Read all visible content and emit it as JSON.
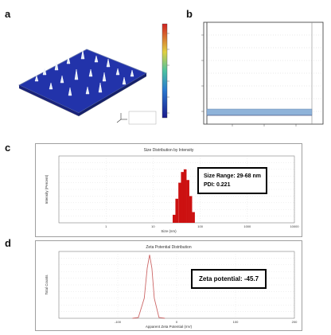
{
  "panels": {
    "a": {
      "letter": "a"
    },
    "b": {
      "letter": "b"
    },
    "c": {
      "letter": "c",
      "title": "Size Distribution by Intensity",
      "xlabel": "Size (nm)",
      "ylabel": "Intensity (Percent)",
      "size_range": "Size Range: 29-68 nm",
      "pdi": "PDI: 0.221"
    },
    "d": {
      "letter": "d",
      "title": "Zeta Potential Distribution",
      "xlabel": "Apparent Zeta Potential (mV)",
      "ylabel": "Total Counts",
      "zeta": "Zeta potential: -45.7"
    }
  },
  "colors": {
    "surface_blue": "#2233aa",
    "bar_red": "#cc1111",
    "zeta_line": "#cc6666",
    "panel_b_band": "#8fb3d9"
  },
  "chart_data": [
    {
      "type": "bar",
      "panel": "c",
      "title": "Size Distribution by Intensity",
      "xlabel": "Size (nm)",
      "ylabel": "Intensity (Percent)",
      "x_scale": "log",
      "xlim": [
        0.1,
        10000
      ],
      "ylim": [
        0,
        25
      ],
      "x_ticks": [
        "1",
        "10",
        "100",
        "1000",
        "10000"
      ],
      "x": [
        28,
        32,
        37,
        42,
        48,
        55,
        63,
        72
      ],
      "values": [
        3,
        9,
        15,
        19,
        20,
        16,
        10,
        4
      ]
    },
    {
      "type": "line",
      "panel": "d",
      "title": "Zeta Potential Distribution",
      "xlabel": "Apparent Zeta Potential (mV)",
      "ylabel": "Total Counts",
      "xlim": [
        -200,
        200
      ],
      "ylim": [
        0,
        400000
      ],
      "x_ticks": [
        "-100",
        "0",
        "100",
        "200"
      ],
      "x": [
        -75,
        -65,
        -55,
        -50,
        -46,
        -42,
        -38,
        -30,
        -20
      ],
      "values": [
        0,
        5000,
        120000,
        300000,
        380000,
        300000,
        120000,
        5000,
        0
      ]
    }
  ]
}
